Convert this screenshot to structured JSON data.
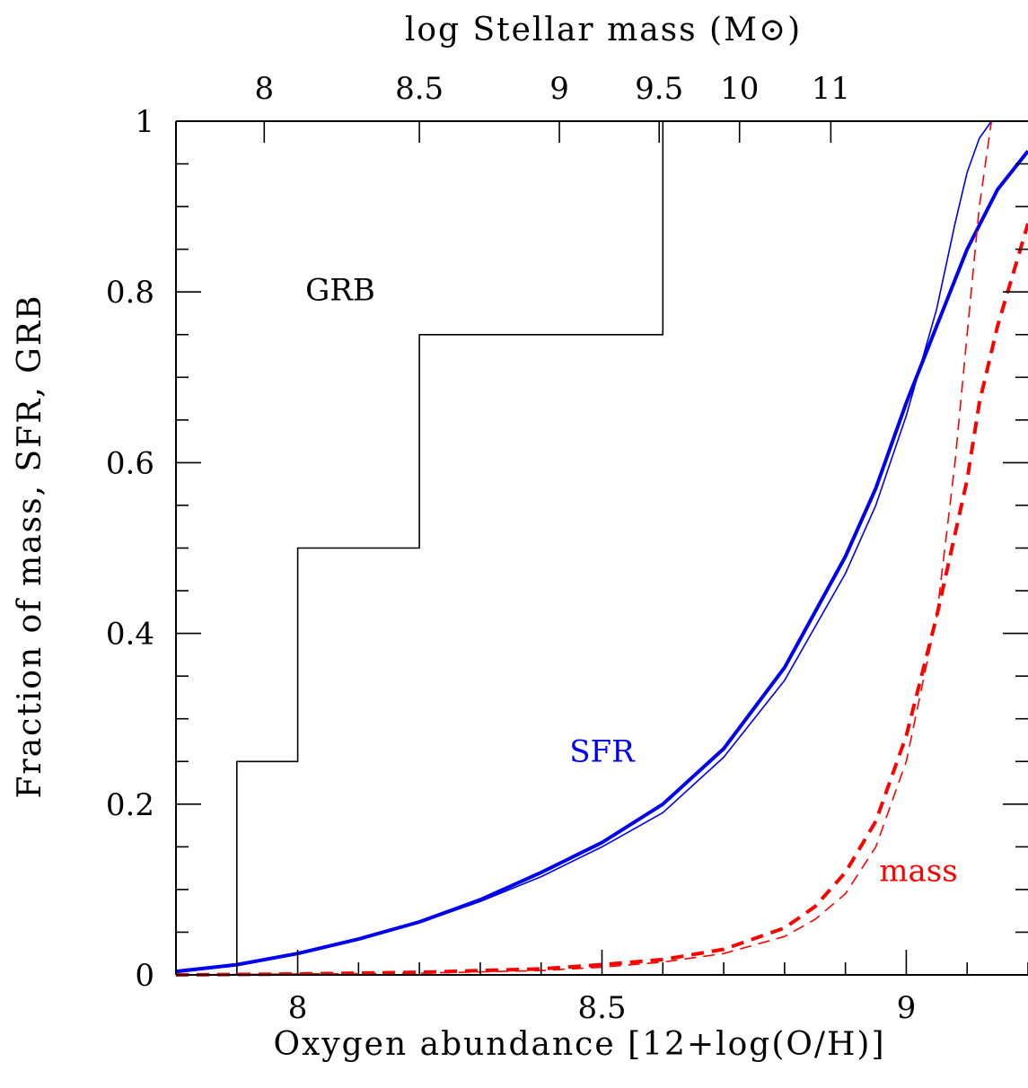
{
  "chart_data": {
    "type": "line",
    "xlabel": "Oxygen abundance [12+log(O/H)]",
    "ylabel": "Fraction of mass, SFR, GRB",
    "top_axis_label": "log Stellar mass (M⊙)",
    "xlim": [
      7.8,
      9.2
    ],
    "ylim": [
      0,
      1
    ],
    "x_ticks": [
      8,
      8.5,
      9
    ],
    "x_tick_labels": [
      "8",
      "8.5",
      "9"
    ],
    "y_ticks": [
      0,
      0.2,
      0.4,
      0.6,
      0.8,
      1
    ],
    "y_tick_labels": [
      "0",
      "0.2",
      "0.4",
      "0.6",
      "0.8",
      "1"
    ],
    "top_ticks": [
      {
        "label": "8",
        "at_oh": 7.945
      },
      {
        "label": "8.5",
        "at_oh": 8.2
      },
      {
        "label": "9",
        "at_oh": 8.43
      },
      {
        "label": "9.5",
        "at_oh": 8.594
      },
      {
        "label": "10",
        "at_oh": 8.726
      },
      {
        "label": "11",
        "at_oh": 8.876
      }
    ],
    "annotations": [
      {
        "text": "GRB",
        "color": "#000000",
        "x": 8.07,
        "y": 0.79
      },
      {
        "text": "SFR",
        "color": "#0000ee",
        "x": 8.5,
        "y": 0.25
      },
      {
        "text": "mass",
        "color": "#ff0000",
        "x": 9.02,
        "y": 0.11
      }
    ],
    "series": [
      {
        "id": "grb",
        "color": "#000000",
        "style": "solid",
        "weight": "thin",
        "step": true,
        "points": [
          [
            7.9,
            0
          ],
          [
            7.9,
            0.25
          ],
          [
            8.0,
            0.25
          ],
          [
            8.0,
            0.5
          ],
          [
            8.2,
            0.5
          ],
          [
            8.2,
            0.75
          ],
          [
            8.6,
            0.75
          ],
          [
            8.6,
            1.0
          ]
        ]
      },
      {
        "id": "sfr-thick",
        "color": "#0000ee",
        "style": "solid",
        "weight": "thick",
        "points": [
          [
            7.8,
            0.004
          ],
          [
            7.9,
            0.012
          ],
          [
            8.0,
            0.025
          ],
          [
            8.1,
            0.042
          ],
          [
            8.2,
            0.062
          ],
          [
            8.3,
            0.088
          ],
          [
            8.4,
            0.12
          ],
          [
            8.5,
            0.155
          ],
          [
            8.6,
            0.2
          ],
          [
            8.7,
            0.265
          ],
          [
            8.8,
            0.36
          ],
          [
            8.9,
            0.49
          ],
          [
            8.95,
            0.57
          ],
          [
            9.0,
            0.67
          ],
          [
            9.05,
            0.76
          ],
          [
            9.1,
            0.85
          ],
          [
            9.15,
            0.92
          ],
          [
            9.2,
            0.965
          ]
        ]
      },
      {
        "id": "sfr-thin",
        "color": "#0000ee",
        "style": "solid",
        "weight": "thin",
        "points": [
          [
            7.8,
            0.004
          ],
          [
            7.9,
            0.012
          ],
          [
            8.0,
            0.025
          ],
          [
            8.1,
            0.041
          ],
          [
            8.2,
            0.061
          ],
          [
            8.3,
            0.086
          ],
          [
            8.4,
            0.115
          ],
          [
            8.5,
            0.15
          ],
          [
            8.6,
            0.19
          ],
          [
            8.7,
            0.255
          ],
          [
            8.8,
            0.345
          ],
          [
            8.9,
            0.47
          ],
          [
            8.95,
            0.55
          ],
          [
            9.0,
            0.655
          ],
          [
            9.05,
            0.78
          ],
          [
            9.08,
            0.88
          ],
          [
            9.1,
            0.94
          ],
          [
            9.12,
            0.98
          ],
          [
            9.14,
            1.0
          ]
        ]
      },
      {
        "id": "mass-thick",
        "color": "#ff0000",
        "style": "dashed",
        "weight": "thick",
        "points": [
          [
            7.8,
            0.0
          ],
          [
            8.0,
            0.001
          ],
          [
            8.2,
            0.003
          ],
          [
            8.4,
            0.007
          ],
          [
            8.5,
            0.012
          ],
          [
            8.6,
            0.018
          ],
          [
            8.7,
            0.03
          ],
          [
            8.8,
            0.055
          ],
          [
            8.85,
            0.08
          ],
          [
            8.9,
            0.12
          ],
          [
            8.95,
            0.18
          ],
          [
            9.0,
            0.28
          ],
          [
            9.05,
            0.42
          ],
          [
            9.1,
            0.58
          ],
          [
            9.12,
            0.67
          ],
          [
            9.15,
            0.76
          ],
          [
            9.2,
            0.88
          ]
        ]
      },
      {
        "id": "mass-thin",
        "color": "#ff0000",
        "style": "dashed",
        "weight": "thin",
        "points": [
          [
            7.8,
            0.0
          ],
          [
            8.0,
            0.001
          ],
          [
            8.2,
            0.002
          ],
          [
            8.4,
            0.005
          ],
          [
            8.5,
            0.009
          ],
          [
            8.6,
            0.015
          ],
          [
            8.7,
            0.025
          ],
          [
            8.8,
            0.045
          ],
          [
            8.85,
            0.065
          ],
          [
            8.9,
            0.095
          ],
          [
            8.95,
            0.15
          ],
          [
            9.0,
            0.25
          ],
          [
            9.05,
            0.42
          ],
          [
            9.08,
            0.6
          ],
          [
            9.1,
            0.75
          ],
          [
            9.12,
            0.9
          ],
          [
            9.14,
            1.0
          ]
        ]
      }
    ]
  }
}
